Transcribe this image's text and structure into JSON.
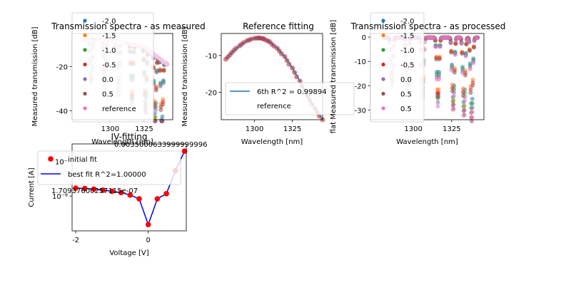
{
  "chart_data": [
    {
      "id": "ts-measured",
      "type": "scatter",
      "title": "Transmission spectra - as measured",
      "xlabel": "Wavelength [nm]",
      "ylabel": "Measured transmission [dB]",
      "xlim": [
        1272,
        1346
      ],
      "ylim": [
        -44,
        -5
      ],
      "xticks": [
        1300,
        1325
      ],
      "yticks": [
        -20,
        -40
      ],
      "legend_position": "upper-left",
      "series": [
        {
          "name": "-2.0",
          "color": "#1f77b4"
        },
        {
          "name": "-1.5",
          "color": "#ff7f0e"
        },
        {
          "name": "-1.0",
          "color": "#2ca02c"
        },
        {
          "name": "-0.5",
          "color": "#d62728"
        },
        {
          "name": "0.0",
          "color": "#9467bd"
        },
        {
          "name": "0.5",
          "color": "#8c564b"
        },
        {
          "name": "reference",
          "color": "#e377c2"
        }
      ],
      "dips_nm": [
        1286,
        1296,
        1306,
        1316,
        1326,
        1333,
        1338
      ]
    },
    {
      "id": "ref-fit",
      "type": "line",
      "title": "Reference fitting",
      "xlabel": "Wavelength [nm]",
      "ylabel": "Measured transmission [dB]",
      "xlim": [
        1278,
        1345
      ],
      "ylim": [
        -27.5,
        -4
      ],
      "xticks": [
        1300,
        1325
      ],
      "yticks": [
        -10,
        -20
      ],
      "legend_position": "center-left",
      "series": [
        {
          "name": "6th R^2 = 0.99894",
          "color": "#1f77b4",
          "x": [
            1281,
            1285,
            1290,
            1295,
            1300,
            1303,
            1306,
            1310,
            1315,
            1320,
            1325,
            1330,
            1335,
            1340,
            1345
          ],
          "y": [
            -11,
            -9.2,
            -7.4,
            -6.0,
            -5.3,
            -5.2,
            -5.5,
            -6.3,
            -8.0,
            -10.3,
            -13.4,
            -17.0,
            -21.0,
            -24.5,
            -27.5
          ]
        },
        {
          "name": "reference",
          "color": "#d62728",
          "x": [
            1281,
            1285,
            1290,
            1295,
            1300,
            1303,
            1306,
            1310,
            1315,
            1320,
            1325,
            1330,
            1335,
            1340,
            1345
          ],
          "y": [
            -11,
            -9.2,
            -7.4,
            -6.0,
            -5.3,
            -5.2,
            -5.5,
            -6.3,
            -8.0,
            -10.3,
            -13.4,
            -17.0,
            -21.0,
            -24.5,
            -27.5
          ]
        }
      ]
    },
    {
      "id": "ts-processed",
      "type": "scatter",
      "title": "Transmission spectra - as processed",
      "xlabel": "Wavelength [nm]",
      "ylabel": "flat Measured transmission [dB]",
      "xlim": [
        1272,
        1346
      ],
      "ylim": [
        -34,
        1.5
      ],
      "xticks": [
        1300,
        1325
      ],
      "yticks": [
        0,
        -10,
        -20,
        -30
      ],
      "legend_position": "upper-left",
      "series": [
        {
          "name": "-2.0",
          "color": "#1f77b4"
        },
        {
          "name": "-1.5",
          "color": "#ff7f0e"
        },
        {
          "name": "-1.0",
          "color": "#2ca02c"
        },
        {
          "name": "-0.5",
          "color": "#d62728"
        },
        {
          "name": "0.0",
          "color": "#9467bd"
        },
        {
          "name": "0.5",
          "color": "#8c564b"
        },
        {
          "name": "0.5",
          "color": "#e377c2"
        }
      ],
      "dips_nm": [
        1286,
        1296,
        1306,
        1316,
        1326,
        1333,
        1338
      ]
    },
    {
      "id": "iv-fit",
      "type": "line",
      "title": "IV-fitting",
      "xlabel": "Voltage [V]",
      "ylabel": "Current [A]",
      "yscale": "log",
      "xlim": [
        -2.1,
        1.05
      ],
      "ylim_log10": [
        -9.0,
        -6.5
      ],
      "xticks": [
        -2,
        0
      ],
      "ytick_labels": [
        "10⁻⁸",
        "10⁻"
      ],
      "annotations": [
        "1.70937600257115e-07",
        "0.0035000633999999996"
      ],
      "legend_position": "upper-left",
      "series": [
        {
          "name": "initial fit",
          "color": "#ff0000",
          "x": [
            -2.0,
            -1.75,
            -1.5,
            -1.25,
            -1.0,
            -0.75,
            -0.5,
            -0.25,
            0.0,
            0.25,
            0.5,
            0.75,
            1.0
          ],
          "log10_y": [
            -7.77,
            -7.78,
            -7.8,
            -7.83,
            -7.86,
            -7.9,
            -7.97,
            -8.08,
            -8.82,
            -8.08,
            -7.93,
            -7.27,
            -6.71
          ]
        },
        {
          "name": "best fit R^2=1.00000",
          "color": "#0000ff",
          "x": [
            -2.0,
            -1.75,
            -1.5,
            -1.25,
            -1.0,
            -0.75,
            -0.5,
            -0.25,
            0.0,
            0.25,
            0.5,
            0.75,
            1.0
          ],
          "log10_y": [
            -7.77,
            -7.78,
            -7.8,
            -7.83,
            -7.86,
            -7.9,
            -7.97,
            -8.08,
            -8.82,
            -8.08,
            -7.93,
            -7.27,
            -6.71
          ]
        }
      ]
    }
  ]
}
